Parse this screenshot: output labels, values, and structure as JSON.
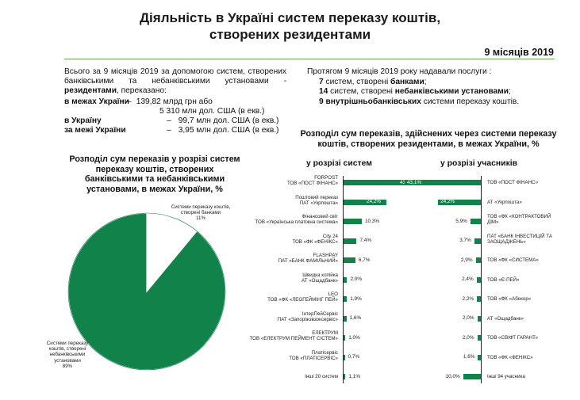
{
  "header": {
    "title_line1": "Діяльність в Україні систем переказу коштів,",
    "title_line2": "створених резидентами",
    "period": "9 місяців 2019"
  },
  "left_intro": {
    "p1": "Всього за 9 місяців 2019 за допомогою систем, створених банківськими та небанківськими установами - ",
    "p1_bold": "резидентами",
    "p1_end": ", переказано:",
    "rows": [
      {
        "label": "в межах України",
        "dash": "–",
        "value": "139,82  млрд грн або"
      },
      {
        "label": "",
        "dash": "",
        "value": "5 310 млн дол. США (в екв.)"
      },
      {
        "label": "в Україну",
        "dash": "–",
        "value": "99,7 млн дол. США (в екв.)"
      },
      {
        "label": "за межі України",
        "dash": "–",
        "value": "3,95 млн дол. США (в екв.)"
      }
    ]
  },
  "right_intro": {
    "lead": "Протягом 9 місяців 2019 року надавали послуги :",
    "l1_num": "7",
    "l1_text": " систем, створені ",
    "l1_bold": "банками",
    "l1_end": ";",
    "l2_num": "14",
    "l2_text": " систем, створені ",
    "l2_bold": "небанківськими установами",
    "l2_end": ";",
    "l3_bold": "9 внутрішньобанківських",
    "l3_text": " системи переказу коштів."
  },
  "pie_section": {
    "title_l1": "Розподіл сум переказів у розрізі систем",
    "title_l2": "переказу коштів, створених",
    "title_l3": "банківськими та небанківськими",
    "title_l4": "установами, в межах України, %"
  },
  "chart_data": [
    {
      "type": "pie",
      "title": "Розподіл сум переказів у розрізі систем переказу коштів, створених банківськими та небанківськими установами, в межах України, %",
      "slices": [
        {
          "label_l1": "Системи переказу коштів,",
          "label_l2": "створені банками",
          "pct_label": "11%",
          "value": 11,
          "color": "#ffffff"
        },
        {
          "label_l1": "Системи переказу",
          "label_l2": "коштів, створені",
          "label_l3": "небанківськими",
          "label_l4": "установами",
          "pct_label": "89%",
          "value": 89,
          "color": "#11824a"
        }
      ]
    },
    {
      "type": "bar",
      "title": "у розрізі систем",
      "categories": [
        {
          "l1": "FORPOST",
          "l2": "ТОВ «ПОСТ ФІНАНС»"
        },
        {
          "l1": "Поштовий переказ",
          "l2": "ПАТ «Укрпошта»"
        },
        {
          "l1": "Фінансовий світ",
          "l2": "ТОВ «Українська платіжна система»"
        },
        {
          "l1": "City 24",
          "l2": "ТОВ «ФК «ФЕНІКС»"
        },
        {
          "l1": "FLASHPAY",
          "l2": "ПАТ «БАНК ФАМІЛЬНИЙ»"
        },
        {
          "l1": "Швидка копійка",
          "l2": "АТ «Ощадбанк»"
        },
        {
          "l1": "LEO",
          "l2": "ТОВ «ФК «ЛЕОГЕЙМІНГ ПЕЙ»"
        },
        {
          "l1": "ІнтерПейСервіс",
          "l2": "ПАТ «Запоріжзвзоксервіс»"
        },
        {
          "l1": "ЕЛЕКТРУМ",
          "l2": "ТОВ «ЕЛЕКТРУМ ПЕЙМЕНТ СІСТЕМ»"
        },
        {
          "l1": "Платісервіс",
          "l2": "ТОВ «ПЛАТІСЕРВІС»"
        },
        {
          "l1": "Інші 20 систем",
          "l2": ""
        }
      ],
      "values": [
        43.1,
        24.2,
        10.3,
        7.4,
        6.7,
        2.0,
        1.9,
        1.6,
        1.0,
        0.7,
        1.1
      ],
      "labels": [
        "43,1%",
        "24,2%",
        "10,3%",
        "7,4%",
        "6,7%",
        "2,0%",
        "1,9%",
        "1,6%",
        "1,0%",
        "0,7%",
        "1,1%"
      ],
      "xlim": [
        0,
        43.1
      ]
    },
    {
      "type": "bar",
      "title": "у розрізі учасників",
      "categories": [
        {
          "l1": "ТОВ «ПОСТ ФІНАНС»",
          "l2": ""
        },
        {
          "l1": "АТ «Укрпошта»",
          "l2": ""
        },
        {
          "l1": "ТОВ «ФК «КОНТРАКТОВИЙ",
          "l2": "ДІМ»"
        },
        {
          "l1": "ПАТ «БАНК ІНВЕСТИЦІЙ ТА",
          "l2": "ЗАОЩАДЖЕНЬ»"
        },
        {
          "l1": "ТОВ «ФК «СИСТЕМА»",
          "l2": ""
        },
        {
          "l1": "ТОВ «Є-ПЕЙ»",
          "l2": ""
        },
        {
          "l1": "ТОВ «ФК «Абекор»",
          "l2": ""
        },
        {
          "l1": "АТ «Ощадбанк»",
          "l2": ""
        },
        {
          "l1": "ТОВ «СВІФТ ГАРАНТ»",
          "l2": ""
        },
        {
          "l1": "ТОВ «ФК «ФЕНІКС»",
          "l2": ""
        },
        {
          "l1": "Інші 94 учасника",
          "l2": ""
        }
      ],
      "values": [
        43.1,
        24.2,
        5.9,
        3.7,
        2.9,
        2.4,
        2.2,
        2.0,
        2.0,
        1.6,
        10.0
      ],
      "labels": [
        "43,1%",
        "24,2%",
        "5,9%",
        "3,7%",
        "2,9%",
        "2,4%",
        "2,2%",
        "2,0%",
        "2,0%",
        "1,6%",
        "10,0%"
      ],
      "xlim": [
        0,
        43.1
      ]
    }
  ],
  "right_section": {
    "title_l1": "Розподіл сум переказів, здійснених через системи переказу",
    "title_l2": "коштів, створених резидентами, в межах України, %",
    "sub_systems": "у розрізі систем",
    "sub_participants": "у розрізі учасників"
  },
  "colors": {
    "bar": "#11824a",
    "rule": "#6fa05a"
  }
}
